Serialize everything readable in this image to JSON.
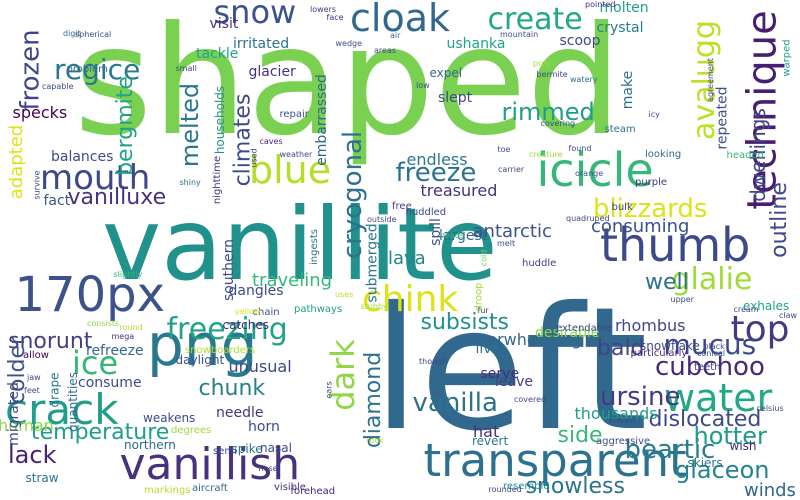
{
  "words": [
    {
      "text": "shaped",
      "color": "#7ad151"
    },
    {
      "text": "left",
      "color": "#31688e"
    },
    {
      "text": "vanillite",
      "color": "#21918c"
    },
    {
      "text": "png",
      "color": "#2a788e"
    },
    {
      "text": "170px",
      "color": "#3b528b"
    },
    {
      "text": "transparent",
      "color": "#2c728e"
    },
    {
      "text": "icicle",
      "color": "#35b779"
    },
    {
      "text": "thumb",
      "color": "#3e4989"
    },
    {
      "text": "vanillish",
      "color": "#46327e"
    },
    {
      "text": "technique",
      "color": "#481f70"
    },
    {
      "text": "crack",
      "color": "#1f9e89"
    },
    {
      "text": "cloak",
      "color": "#31688e"
    },
    {
      "text": "water",
      "color": "#22a884"
    },
    {
      "text": "blue",
      "color": "#b5de2b"
    },
    {
      "text": "mouth",
      "color": "#3e4989"
    },
    {
      "text": "chink",
      "color": "#dde318"
    },
    {
      "text": "create",
      "color": "#22a884"
    },
    {
      "text": "snow",
      "color": "#3b528b"
    },
    {
      "text": "dark",
      "color": "#8fd744"
    },
    {
      "text": "freezing",
      "color": "#20a386"
    },
    {
      "text": "ice",
      "color": "#35b779"
    },
    {
      "text": "top",
      "color": "#443a83"
    },
    {
      "text": "avalugg",
      "color": "#bddf26"
    },
    {
      "text": "glalie",
      "color": "#a0da39"
    },
    {
      "text": "frozen",
      "color": "#414487"
    },
    {
      "text": "regice",
      "color": "#2a788e"
    },
    {
      "text": "cryogonal",
      "color": "#2c728e"
    },
    {
      "text": "mucus",
      "color": "#3e4989"
    },
    {
      "text": "vanilla",
      "color": "#2c728e"
    },
    {
      "text": "ursine",
      "color": "#443a83"
    },
    {
      "text": "beartic",
      "color": "#287c8e"
    },
    {
      "text": "cubchoo",
      "color": "#482878"
    },
    {
      "text": "hotter",
      "color": "#1e9b8a"
    },
    {
      "text": "glaceon",
      "color": "#25848e"
    },
    {
      "text": "blizzards",
      "color": "#dde318"
    },
    {
      "text": "freeze",
      "color": "#2c728e"
    },
    {
      "text": "snorunt",
      "color": "#433e85"
    },
    {
      "text": "melted",
      "color": "#2a788e"
    },
    {
      "text": "climates",
      "color": "#3e4989"
    },
    {
      "text": "bergmite",
      "color": "#20a386"
    },
    {
      "text": "rimmed",
      "color": "#1f9e89"
    },
    {
      "text": "vanilluxe",
      "color": "#46327e"
    },
    {
      "text": "temperature",
      "color": "#1f9e89"
    },
    {
      "text": "snowless",
      "color": "#2c728e"
    },
    {
      "text": "dislocated",
      "color": "#3e4989"
    },
    {
      "text": "lack",
      "color": "#482173"
    },
    {
      "text": "outline",
      "color": "#3e4989"
    },
    {
      "text": "dwellings",
      "color": "#404588"
    },
    {
      "text": "subsists",
      "color": "#21918c"
    },
    {
      "text": "bald",
      "color": "#414487"
    },
    {
      "text": "side",
      "color": "#37b878"
    },
    {
      "text": "diamond",
      "color": "#2c728e"
    },
    {
      "text": "chunk",
      "color": "#27808e"
    },
    {
      "text": "colder",
      "color": "#3b528b"
    },
    {
      "text": "well",
      "color": "#2c728e"
    },
    {
      "text": "winds",
      "color": "#31688e"
    },
    {
      "text": "consuming",
      "color": "#3b528b"
    },
    {
      "text": "antarctic",
      "color": "#3b528b"
    },
    {
      "text": "lava",
      "color": "#25848e"
    },
    {
      "text": "adapted",
      "color": "#dde318"
    },
    {
      "text": "treasured",
      "color": "#46327e"
    },
    {
      "text": "endless",
      "color": "#2a788e"
    },
    {
      "text": "rhombus",
      "color": "#3e4989"
    },
    {
      "text": "overwhelming",
      "color": "#31688e"
    },
    {
      "text": "traveling",
      "color": "#35b779"
    },
    {
      "text": "unusual",
      "color": "#3e4989"
    },
    {
      "text": "thousands",
      "color": "#1f9e89"
    },
    {
      "text": "hat",
      "color": "#46327e"
    },
    {
      "text": "human",
      "color": "#8fd744"
    },
    {
      "text": "specks",
      "color": "#440154"
    },
    {
      "text": "balances",
      "color": "#3e4989"
    },
    {
      "text": "fact",
      "color": "#3b528b"
    },
    {
      "text": "glacier",
      "color": "#46327e"
    },
    {
      "text": "molten",
      "color": "#1fa187"
    },
    {
      "text": "crystal",
      "color": "#27808e"
    },
    {
      "text": "ushanka",
      "color": "#20a386"
    },
    {
      "text": "scoop",
      "color": "#3e4989"
    },
    {
      "text": "slept",
      "color": "#414487"
    },
    {
      "text": "expel",
      "color": "#31688e"
    },
    {
      "text": "embarrassed",
      "color": "#31688e"
    },
    {
      "text": "make",
      "color": "#2c728e"
    },
    {
      "text": "repeated",
      "color": "#3b528b"
    },
    {
      "text": "largest",
      "color": "#31688e"
    },
    {
      "text": "submerged",
      "color": "#2a788e"
    },
    {
      "text": "southern",
      "color": "#3e4989"
    },
    {
      "text": "needle",
      "color": "#46327e"
    },
    {
      "text": "horn",
      "color": "#3e4989"
    },
    {
      "text": "refreeze",
      "color": "#31688e"
    },
    {
      "text": "consume",
      "color": "#3e4989"
    },
    {
      "text": "migrated",
      "color": "#3e4989"
    },
    {
      "text": "serve",
      "color": "#482878"
    },
    {
      "text": "live",
      "color": "#2c728e"
    },
    {
      "text": "leave",
      "color": "#433e85"
    },
    {
      "text": "desirable",
      "color": "#8fd744"
    },
    {
      "text": "visit",
      "color": "#46327e"
    },
    {
      "text": "tackle",
      "color": "#20a386"
    },
    {
      "text": "irritated",
      "color": "#2c728e"
    },
    {
      "text": "households",
      "color": "#21918c"
    },
    {
      "text": "spill",
      "color": "#3b528b"
    },
    {
      "text": "dangles",
      "color": "#3e4989"
    },
    {
      "text": "catches",
      "color": "#482878"
    },
    {
      "text": "drape",
      "color": "#2c728e"
    },
    {
      "text": "exhales",
      "color": "#20a386"
    },
    {
      "text": "skiers",
      "color": "#2c728e"
    },
    {
      "text": "wish",
      "color": "#482878"
    },
    {
      "text": "revert",
      "color": "#2a788e"
    },
    {
      "text": "snowflake",
      "color": "#3e4989"
    },
    {
      "text": "spike",
      "color": "#2c728e"
    },
    {
      "text": "daylight",
      "color": "#3b528b"
    },
    {
      "text": "nasal",
      "color": "#3e4989"
    },
    {
      "text": "weakens",
      "color": "#3e4989"
    },
    {
      "text": "northern",
      "color": "#31688e"
    },
    {
      "text": "straw",
      "color": "#2c728e"
    },
    {
      "text": "quantities",
      "color": "#31688e"
    },
    {
      "text": "snowboarders",
      "color": "#b5de2b"
    },
    {
      "text": "nighttime",
      "color": "#46327e"
    },
    {
      "text": "pathways",
      "color": "#1fa187"
    },
    {
      "text": "ingests",
      "color": "#2c728e"
    },
    {
      "text": "free",
      "color": "#443a83"
    },
    {
      "text": "huddled",
      "color": "#3e4989"
    },
    {
      "text": "huddle",
      "color": "#443a83"
    },
    {
      "text": "bulk",
      "color": "#3e4989"
    },
    {
      "text": "headed",
      "color": "#35b779"
    },
    {
      "text": "looking",
      "color": "#31688e"
    },
    {
      "text": "purple",
      "color": "#46327e"
    },
    {
      "text": "steam",
      "color": "#2c728e"
    },
    {
      "text": "extendable",
      "color": "#3e4989"
    },
    {
      "text": "particularly",
      "color": "#482878"
    },
    {
      "text": "teeth",
      "color": "#3e4989"
    },
    {
      "text": "aggressive",
      "color": "#3e4989"
    },
    {
      "text": "resemble",
      "color": "#21918c"
    },
    {
      "text": "forehead",
      "color": "#482878"
    },
    {
      "text": "visible",
      "color": "#46327e"
    },
    {
      "text": "aircraft",
      "color": "#31688e"
    },
    {
      "text": "markings",
      "color": "#b5de2b"
    },
    {
      "text": "degrees",
      "color": "#a0da39"
    },
    {
      "text": "semi",
      "color": "#3e4989"
    },
    {
      "text": "chain",
      "color": "#3b528b"
    },
    {
      "text": "yellow",
      "color": "#dde318"
    },
    {
      "text": "mega",
      "color": "#46327e"
    },
    {
      "text": "allow",
      "color": "#440154"
    },
    {
      "text": "jaw",
      "color": "#3e4989"
    },
    {
      "text": "feet",
      "color": "#3b528b"
    },
    {
      "text": "consists",
      "color": "#8fd744"
    },
    {
      "text": "round",
      "color": "#b5de2b"
    },
    {
      "text": "slightly",
      "color": "#35b779"
    },
    {
      "text": "survive",
      "color": "#3e4989"
    },
    {
      "text": "shiny",
      "color": "#2c728e"
    },
    {
      "text": "weather",
      "color": "#3e4989"
    },
    {
      "text": "caves",
      "color": "#482878"
    },
    {
      "text": "used",
      "color": "#3e4989"
    },
    {
      "text": "repair",
      "color": "#3b528b"
    },
    {
      "text": "small",
      "color": "#3e4989"
    },
    {
      "text": "problem",
      "color": "#31688e"
    },
    {
      "text": "spherical",
      "color": "#3e4989"
    },
    {
      "text": "digit",
      "color": "#31688e"
    },
    {
      "text": "capable",
      "color": "#3e4989"
    },
    {
      "text": "lowers",
      "color": "#46327e"
    },
    {
      "text": "face",
      "color": "#46327e"
    },
    {
      "text": "wedge",
      "color": "#3e4989"
    },
    {
      "text": "air",
      "color": "#2c728e"
    },
    {
      "text": "areas",
      "color": "#3e4989"
    },
    {
      "text": "mountain",
      "color": "#3e4989"
    },
    {
      "text": "pointed",
      "color": "#46327e"
    },
    {
      "text": "prey",
      "color": "#a0da39"
    },
    {
      "text": "bermite",
      "color": "#3e4989"
    },
    {
      "text": "low",
      "color": "#3e4989"
    },
    {
      "text": "watery",
      "color": "#2c728e"
    },
    {
      "text": "covering",
      "color": "#3e4989"
    },
    {
      "text": "icy",
      "color": "#3e4989"
    },
    {
      "text": "agreement",
      "color": "#3e4989"
    },
    {
      "text": "warped",
      "color": "#1f9e89"
    },
    {
      "text": "toe",
      "color": "#3e4989"
    },
    {
      "text": "creature",
      "color": "#a0da39"
    },
    {
      "text": "found",
      "color": "#3e4989"
    },
    {
      "text": "orange",
      "color": "#3e4989"
    },
    {
      "text": "carrier",
      "color": "#3e4989"
    },
    {
      "text": "outside",
      "color": "#3e4989"
    },
    {
      "text": "heads",
      "color": "#35b779"
    },
    {
      "text": "quadruped",
      "color": "#3e4989"
    },
    {
      "text": "melt",
      "color": "#3e4989"
    },
    {
      "text": "cold",
      "color": "#7ad151"
    },
    {
      "text": "stubby",
      "color": "#a0da39"
    },
    {
      "text": "uses",
      "color": "#b5de2b"
    },
    {
      "text": "fur",
      "color": "#3e4989"
    },
    {
      "text": "droop",
      "color": "#a0da39"
    },
    {
      "text": "though",
      "color": "#3e4989"
    },
    {
      "text": "ears",
      "color": "#3e4989"
    },
    {
      "text": "covered",
      "color": "#3e4989"
    },
    {
      "text": "known",
      "color": "#3e4989"
    },
    {
      "text": "rounded",
      "color": "#3e4989"
    },
    {
      "text": "rock",
      "color": "#b5de2b"
    },
    {
      "text": "nose",
      "color": "#3e4989"
    },
    {
      "text": "upper",
      "color": "#3e4989"
    },
    {
      "text": "cream",
      "color": "#3e4989"
    },
    {
      "text": "claw",
      "color": "#3e4989"
    },
    {
      "text": "conical",
      "color": "#3e4989"
    },
    {
      "text": "black",
      "color": "#3e4989"
    },
    {
      "text": "celsius",
      "color": "#3e4989"
    }
  ]
}
